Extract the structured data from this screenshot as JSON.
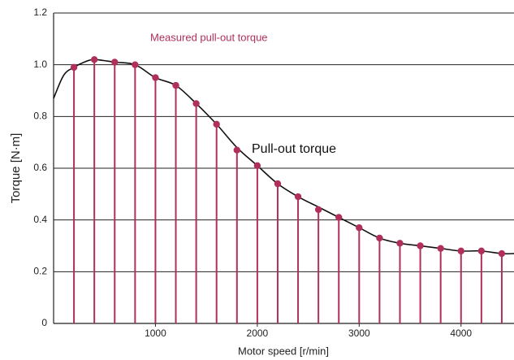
{
  "chart_data": {
    "type": "stem",
    "x_label": "Motor speed [r/min]",
    "y_label": "Torque [N·m]",
    "annotations": [
      "Measured pull-out torque",
      "Pull-out torque"
    ],
    "xlim": [
      0,
      4520
    ],
    "xticks": [
      1000,
      2000,
      3000,
      4000
    ],
    "ylim": [
      0,
      1.2
    ],
    "yticks": [
      0,
      0.2,
      0.4,
      0.6,
      0.8,
      {
        "value": 1,
        "label": "1.0"
      },
      1.2
    ],
    "grid": true,
    "measured": {
      "color": "#b0305a",
      "x": [
        200,
        400,
        600,
        800,
        1000,
        1200,
        1400,
        1600,
        1800,
        2000,
        2200,
        2400,
        2600,
        2800,
        3000,
        3200,
        3400,
        3600,
        3800,
        4000,
        4200,
        4400
      ],
      "values": [
        0.99,
        1.02,
        1.01,
        1.0,
        0.95,
        0.92,
        0.85,
        0.77,
        0.67,
        0.61,
        0.54,
        0.49,
        0.44,
        0.41,
        0.37,
        0.33,
        0.31,
        0.3,
        0.29,
        0.28,
        0.28,
        0.27
      ]
    },
    "curve": {
      "color": "#111111",
      "x": [
        0,
        100,
        200,
        300,
        400,
        600,
        800,
        1000,
        1200,
        1400,
        1600,
        1800,
        2000,
        2200,
        2400,
        2600,
        2800,
        3000,
        3200,
        3400,
        3600,
        3800,
        4000,
        4200,
        4400,
        4520
      ],
      "values": [
        0.87,
        0.96,
        0.99,
        1.01,
        1.02,
        1.01,
        1.0,
        0.95,
        0.92,
        0.85,
        0.77,
        0.68,
        0.61,
        0.54,
        0.49,
        0.45,
        0.41,
        0.37,
        0.33,
        0.31,
        0.3,
        0.29,
        0.28,
        0.28,
        0.27,
        0.27
      ]
    }
  }
}
